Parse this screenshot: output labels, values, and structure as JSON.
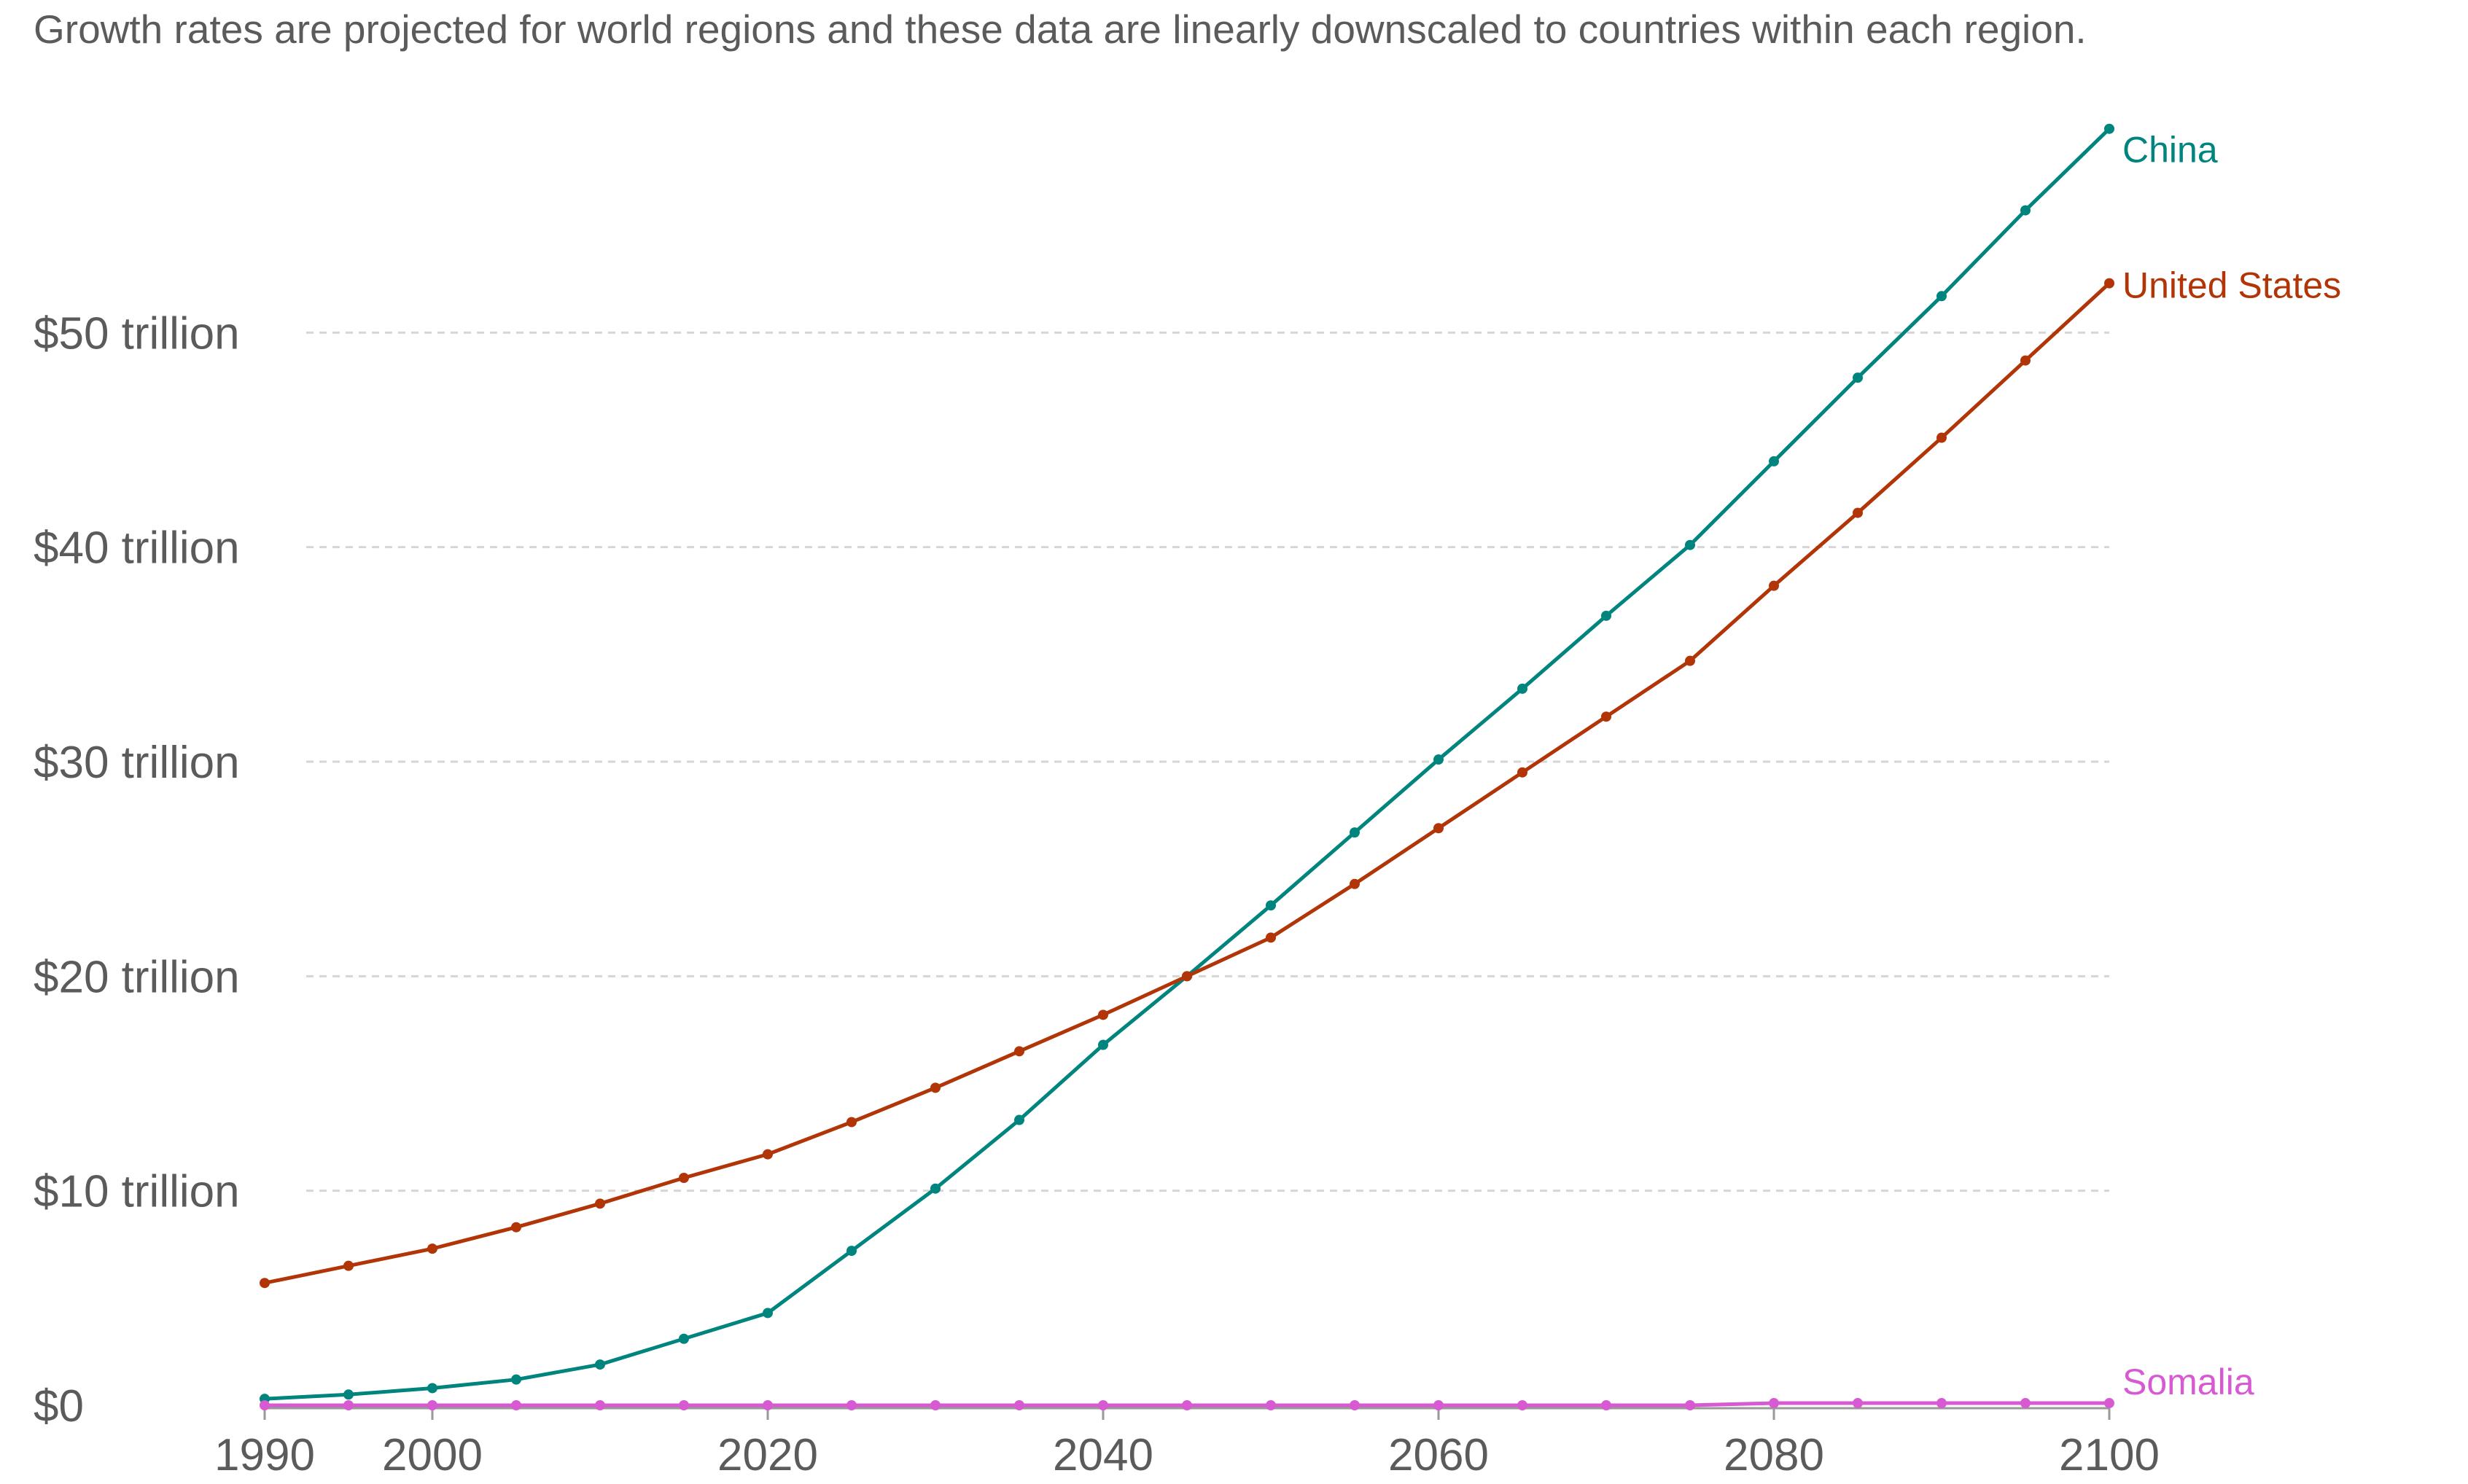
{
  "subtitle": "Growth rates are projected for world regions and these data are linearly downscaled to countries within each region.",
  "chart_data": {
    "type": "line",
    "title": "",
    "subtitle": "Growth rates are projected for world regions and these data are linearly downscaled to countries within each region.",
    "xlabel": "",
    "ylabel": "",
    "xlim": [
      1990,
      2100
    ],
    "ylim": [
      0,
      60
    ],
    "y_unit": "trillion USD",
    "grid": "horizontal dashed",
    "legend": "inline labels at line ends (right)",
    "y_ticks": [
      {
        "value": 0,
        "label": "$0"
      },
      {
        "value": 10,
        "label": "$10 trillion"
      },
      {
        "value": 20,
        "label": "$20 trillion"
      },
      {
        "value": 30,
        "label": "$30 trillion"
      },
      {
        "value": 40,
        "label": "$40 trillion"
      },
      {
        "value": 50,
        "label": "$50 trillion"
      }
    ],
    "x_ticks": [
      {
        "value": 1990,
        "label": "1990"
      },
      {
        "value": 2000,
        "label": "2000"
      },
      {
        "value": 2020,
        "label": "2020"
      },
      {
        "value": 2040,
        "label": "2040"
      },
      {
        "value": 2060,
        "label": "2060"
      },
      {
        "value": 2080,
        "label": "2080"
      },
      {
        "value": 2100,
        "label": "2100"
      }
    ],
    "x": [
      1990,
      1995,
      2000,
      2005,
      2010,
      2015,
      2020,
      2025,
      2030,
      2035,
      2040,
      2045,
      2050,
      2055,
      2060,
      2065,
      2070,
      2075,
      2080,
      2085,
      2090,
      2095,
      2100
    ],
    "series": [
      {
        "name": "China",
        "color": "#00847e",
        "values": [
          0.3,
          0.5,
          0.8,
          1.2,
          1.9,
          3.1,
          4.3,
          7.2,
          10.1,
          13.3,
          16.8,
          20.0,
          23.3,
          26.7,
          30.1,
          33.4,
          36.8,
          40.1,
          44.0,
          47.9,
          51.7,
          55.7,
          59.5
        ]
      },
      {
        "name": "United States",
        "color": "#b13507",
        "values": [
          5.7,
          6.5,
          7.3,
          8.3,
          9.4,
          10.6,
          11.7,
          13.2,
          14.8,
          16.5,
          18.2,
          20.0,
          21.8,
          24.3,
          26.9,
          29.5,
          32.1,
          34.7,
          38.2,
          41.6,
          45.1,
          48.7,
          52.3
        ]
      },
      {
        "name": "Somalia",
        "color": "#d75ad2",
        "values": [
          0.0,
          0.0,
          0.0,
          0.0,
          0.0,
          0.0,
          0.0,
          0.0,
          0.0,
          0.0,
          0.0,
          0.0,
          0.0,
          0.0,
          0.0,
          0.0,
          0.0,
          0.0,
          0.1,
          0.1,
          0.1,
          0.1,
          0.1
        ]
      }
    ]
  }
}
